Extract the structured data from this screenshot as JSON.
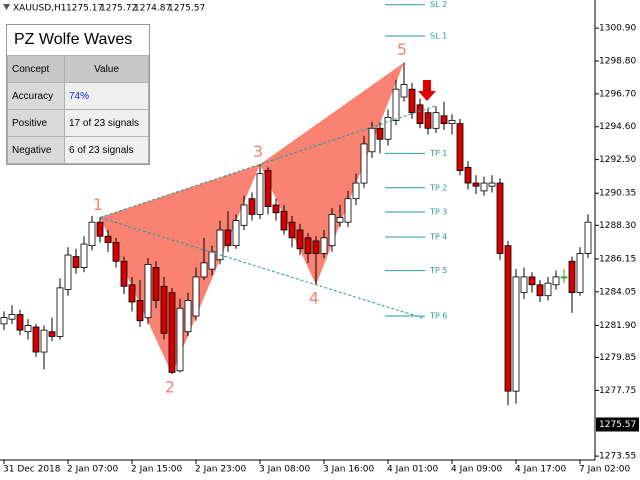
{
  "chart_data": {
    "type": "candlestick",
    "header": {
      "symbol": "XAUUSD,H1",
      "ohlc": [
        1275.17,
        1275.72,
        1274.87,
        1275.57
      ]
    },
    "categories": [
      "31 Dec 2018",
      null,
      null,
      null,
      null,
      null,
      null,
      null,
      "2 Jan 07:00",
      null,
      null,
      null,
      null,
      null,
      null,
      null,
      "2 Jan 15:00",
      null,
      null,
      null,
      null,
      null,
      null,
      null,
      "2 Jan 23:00",
      null,
      null,
      null,
      null,
      null,
      null,
      null,
      "3 Jan 08:00",
      null,
      null,
      null,
      null,
      null,
      null,
      null,
      "3 Jan 16:00",
      null,
      null,
      null,
      null,
      null,
      null,
      null,
      "4 Jan 01:00",
      null,
      null,
      null,
      null,
      null,
      null,
      null,
      "4 Jan 09:00",
      null,
      null,
      null,
      null,
      null,
      null,
      null,
      "4 Jan 17:00",
      null,
      null,
      null,
      null,
      null,
      null,
      null,
      "7 Jan 02:00",
      null
    ],
    "open": [
      1282.0,
      1282.3,
      1282.6,
      1281.5,
      1281.8,
      1280.2,
      1281.5,
      1281.2,
      1284.2,
      1286.3,
      1285.6,
      1287.0,
      1288.5,
      1287.6,
      1287.2,
      1286.0,
      1284.5,
      1283.5,
      1282.4,
      1285.6,
      1284.4,
      1284.0,
      1279.0,
      1281.5,
      1282.5,
      1285.0,
      1285.5,
      1286.1,
      1288.0,
      1287.0,
      1288.3,
      1290.0,
      1289.0,
      1291.8,
      1289.6,
      1289.2,
      1288.5,
      1288.0,
      1287.5,
      1287.3,
      1286.5,
      1287.0,
      1288.5,
      1288.5,
      1290.0,
      1291.0,
      1293.0,
      1294.5,
      1293.8,
      1295.0,
      1296.5,
      1297.0,
      1296.0,
      1295.5,
      1294.5,
      1295.3,
      1294.8,
      1294.8,
      1292.0,
      1291.0,
      1290.5,
      1290.8,
      1291.0,
      1287.0,
      1277.7,
      1284.0,
      1285.0,
      1284.5,
      1283.8,
      1284.5,
      1285.0,
      1286.0,
      1284.0,
      1286.5
    ],
    "high": [
      1282.8,
      1283.2,
      1282.9,
      1282.3,
      1282.0,
      1281.9,
      1282.4,
      1284.9,
      1286.9,
      1286.8,
      1287.6,
      1288.9,
      1288.8,
      1288.0,
      1287.5,
      1286.3,
      1285.0,
      1284.8,
      1286.2,
      1286.0,
      1285.0,
      1284.3,
      1283.6,
      1284.0,
      1285.6,
      1287.5,
      1287.0,
      1288.6,
      1289.2,
      1289.0,
      1290.2,
      1290.4,
      1292.2,
      1292.0,
      1290.0,
      1289.6,
      1288.9,
      1288.4,
      1287.8,
      1287.6,
      1288.0,
      1289.4,
      1289.6,
      1290.5,
      1291.6,
      1294.0,
      1294.9,
      1294.9,
      1295.7,
      1297.6,
      1298.7,
      1297.4,
      1296.4,
      1295.8,
      1295.9,
      1296.2,
      1295.4,
      1295.1,
      1292.4,
      1291.5,
      1291.4,
      1291.5,
      1291.3,
      1287.3,
      1285.5,
      1285.6,
      1285.3,
      1284.8,
      1285.0,
      1285.4,
      1285.5,
      1286.3,
      1286.9,
      1289.0
    ],
    "low": [
      1281.6,
      1282.0,
      1281.3,
      1281.0,
      1279.9,
      1279.1,
      1280.9,
      1281.0,
      1283.8,
      1285.2,
      1285.3,
      1286.7,
      1287.2,
      1286.6,
      1285.6,
      1283.9,
      1282.8,
      1281.8,
      1282.0,
      1283.0,
      1281.0,
      1278.8,
      1278.9,
      1281.2,
      1282.2,
      1284.8,
      1285.1,
      1285.8,
      1286.6,
      1286.8,
      1288.0,
      1288.6,
      1288.7,
      1289.0,
      1288.6,
      1287.7,
      1286.9,
      1286.4,
      1285.9,
      1284.5,
      1286.2,
      1286.6,
      1288.2,
      1288.2,
      1289.6,
      1290.7,
      1292.6,
      1292.9,
      1293.4,
      1294.7,
      1296.2,
      1295.1,
      1294.5,
      1294.1,
      1294.2,
      1294.4,
      1294.1,
      1291.5,
      1290.6,
      1290.3,
      1290.2,
      1290.4,
      1286.1,
      1276.8,
      1276.9,
      1283.6,
      1284.0,
      1283.4,
      1283.5,
      1284.2,
      1284.6,
      1282.7,
      1283.8,
      1286.2
    ],
    "close": [
      1282.4,
      1282.6,
      1281.6,
      1281.9,
      1280.2,
      1281.6,
      1281.2,
      1284.3,
      1286.4,
      1285.6,
      1287.1,
      1288.5,
      1287.6,
      1287.2,
      1286.0,
      1284.4,
      1283.4,
      1282.2,
      1285.8,
      1283.5,
      1281.4,
      1278.9,
      1283.0,
      1283.5,
      1285.0,
      1285.9,
      1286.6,
      1288.0,
      1287.0,
      1288.6,
      1289.6,
      1289.0,
      1291.6,
      1289.5,
      1289.1,
      1288.0,
      1287.5,
      1286.8,
      1286.5,
      1286.5,
      1287.5,
      1289.0,
      1288.8,
      1290.0,
      1291.0,
      1293.5,
      1294.5,
      1293.8,
      1295.2,
      1297.0,
      1297.3,
      1295.5,
      1294.8,
      1294.5,
      1295.5,
      1294.8,
      1295.0,
      1291.8,
      1291.0,
      1290.8,
      1291.0,
      1291.0,
      1286.5,
      1277.7,
      1285.0,
      1285.0,
      1284.5,
      1283.8,
      1284.6,
      1285.0,
      1285.0,
      1284.0,
      1286.5,
      1288.5
    ],
    "up_color": "#ffffff",
    "down_color": "#d40000",
    "doji_color": "#2ca02c",
    "ylim": [
      1273.3,
      1302.7
    ],
    "yticks": [
      {
        "value": 1300.9,
        "label": "1300.90"
      },
      {
        "value": 1298.8,
        "label": "1298.80"
      },
      {
        "value": 1296.7,
        "label": "1296.70"
      },
      {
        "value": 1294.6,
        "label": "1294.60"
      },
      {
        "value": 1292.5,
        "label": "1292.50"
      },
      {
        "value": 1290.35,
        "label": "1290.35"
      },
      {
        "value": 1288.3,
        "label": "1288.30"
      },
      {
        "value": 1286.15,
        "label": "1286.15"
      },
      {
        "value": 1284.05,
        "label": "1284.05"
      },
      {
        "value": 1281.9,
        "label": "1281.90"
      },
      {
        "value": 1279.85,
        "label": "1279.85"
      },
      {
        "value": 1277.75,
        "label": "1277.75"
      },
      {
        "value": 1273.55,
        "label": "1273.55"
      }
    ],
    "last_price": 1275.57,
    "pattern": {
      "color": "#f98272",
      "line_color": "#2a9a9a",
      "points": [
        {
          "label": "1",
          "x": 12,
          "price": 1288.8
        },
        {
          "label": "2",
          "x": 21,
          "price": 1278.8
        },
        {
          "label": "3",
          "x": 32,
          "price": 1292.2
        },
        {
          "label": "4",
          "x": 39,
          "price": 1284.5
        },
        {
          "label": "5",
          "x": 50,
          "price": 1298.7
        }
      ]
    },
    "levels": [
      {
        "label": "SL 2",
        "value": 1302.4
      },
      {
        "label": "SL 1",
        "value": 1300.4
      },
      {
        "label": "TP 1",
        "value": 1292.9
      },
      {
        "label": "TP 2",
        "value": 1290.7
      },
      {
        "label": "TP 3",
        "value": 1289.15
      },
      {
        "label": "TP 4",
        "value": 1287.55
      },
      {
        "label": "TP 5",
        "value": 1285.4
      },
      {
        "label": "TP 6",
        "value": 1282.5
      }
    ],
    "panel": {
      "title": "PZ Wolfe Waves",
      "columns": [
        "Concept",
        "Value"
      ],
      "rows": [
        [
          "Accuracy",
          "74%"
        ],
        [
          "Positive",
          "17 of 23 signals"
        ],
        [
          "Negative",
          "6 of 23 signals"
        ]
      ]
    }
  }
}
